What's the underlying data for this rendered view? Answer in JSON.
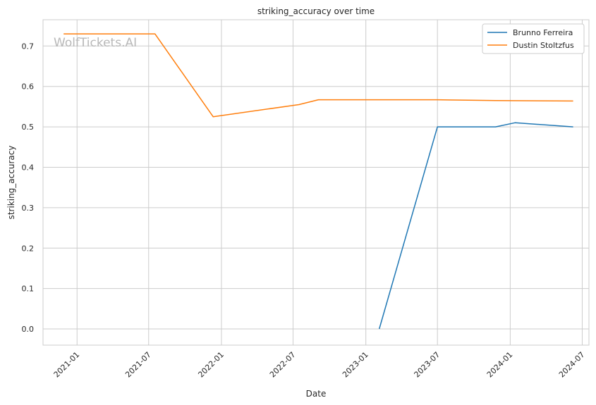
{
  "chart_data": {
    "type": "line",
    "title": "striking_accuracy over time",
    "xlabel": "Date",
    "ylabel": "striking_accuracy",
    "watermark": "WolfTickets.AI",
    "xlim": [
      "2020-10-07",
      "2024-07-18"
    ],
    "ylim": [
      -0.04,
      0.765
    ],
    "x_ticks": [
      "2021-01",
      "2021-07",
      "2022-01",
      "2022-07",
      "2023-01",
      "2023-07",
      "2024-01",
      "2024-07"
    ],
    "y_ticks": [
      "0.0",
      "0.1",
      "0.2",
      "0.3",
      "0.4",
      "0.5",
      "0.6",
      "0.7"
    ],
    "grid": true,
    "legend_position": "top-right",
    "series": [
      {
        "name": "Brunno Ferreira",
        "color": "#1f77b4",
        "points": [
          {
            "x": "2023-02-04",
            "y": 0.0
          },
          {
            "x": "2023-07-01",
            "y": 0.5
          },
          {
            "x": "2023-11-25",
            "y": 0.5
          },
          {
            "x": "2024-01-13",
            "y": 0.51
          },
          {
            "x": "2024-06-08",
            "y": 0.5
          }
        ]
      },
      {
        "name": "Dustin Stoltzfus",
        "color": "#ff7f0e",
        "points": [
          {
            "x": "2020-11-28",
            "y": 0.73
          },
          {
            "x": "2021-07-17",
            "y": 0.73
          },
          {
            "x": "2021-12-11",
            "y": 0.525
          },
          {
            "x": "2022-07-16",
            "y": 0.555
          },
          {
            "x": "2022-09-03",
            "y": 0.567
          },
          {
            "x": "2023-07-01",
            "y": 0.567
          },
          {
            "x": "2023-11-25",
            "y": 0.565
          },
          {
            "x": "2024-06-08",
            "y": 0.564
          }
        ]
      }
    ]
  }
}
